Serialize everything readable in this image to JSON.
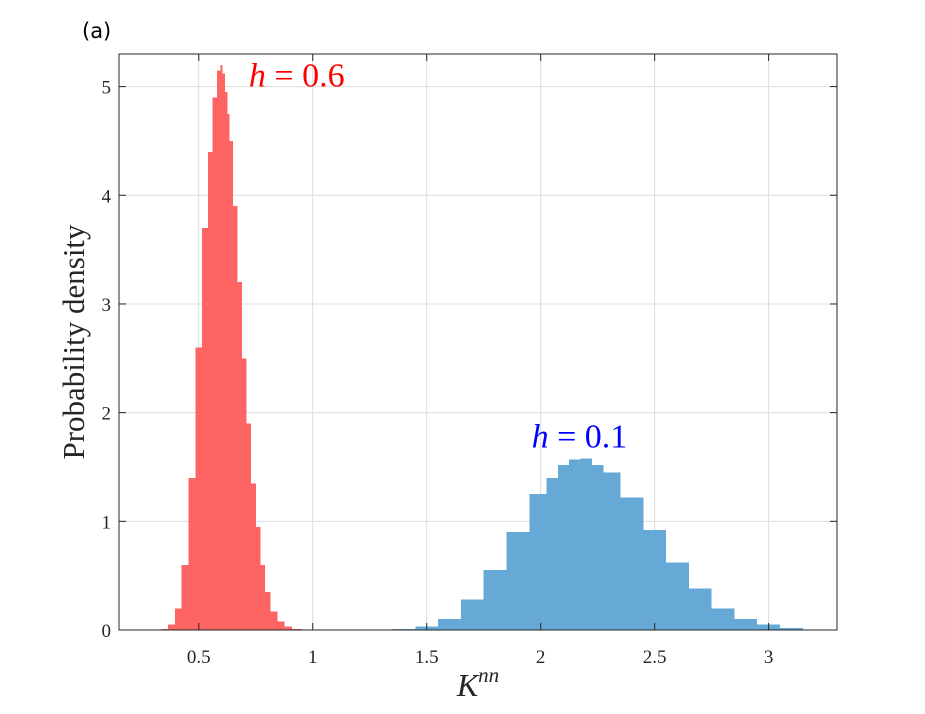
{
  "panel_label": "(a)",
  "chart_data": {
    "type": "histogram",
    "title": "",
    "xlabel": "K",
    "xlabel_superscript": "nn",
    "ylabel": "Probability density",
    "xlim": [
      0.15,
      3.3
    ],
    "ylim": [
      0,
      5.3
    ],
    "xticks": [
      0.5,
      1,
      1.5,
      2,
      2.5,
      3
    ],
    "xtick_labels": [
      "0.5",
      "1",
      "1.5",
      "2",
      "2.5",
      "3"
    ],
    "yticks": [
      0,
      1,
      2,
      3,
      4,
      5
    ],
    "ytick_labels": [
      "0",
      "1",
      "2",
      "3",
      "4",
      "5"
    ],
    "grid": true,
    "series": [
      {
        "color": "#ff6464",
        "x": [
          0.35,
          0.38,
          0.41,
          0.44,
          0.47,
          0.5,
          0.53,
          0.55,
          0.57,
          0.59,
          0.6,
          0.61,
          0.62,
          0.63,
          0.64,
          0.66,
          0.68,
          0.7,
          0.72,
          0.74,
          0.76,
          0.78,
          0.8,
          0.83,
          0.86,
          0.89,
          0.93,
          0.97
        ],
        "y": [
          0.01,
          0.05,
          0.2,
          0.6,
          1.4,
          2.6,
          3.7,
          4.4,
          4.9,
          5.15,
          5.2,
          5.12,
          4.95,
          4.75,
          4.5,
          3.9,
          3.2,
          2.5,
          1.9,
          1.35,
          0.95,
          0.6,
          0.35,
          0.17,
          0.08,
          0.03,
          0.01,
          0.0
        ],
        "annotation": {
          "var": "h",
          "eq": " = ",
          "value": "0.6",
          "x": 0.72,
          "y": 5.0
        }
      },
      {
        "color": "#66a9d6",
        "x": [
          1.4,
          1.5,
          1.6,
          1.7,
          1.8,
          1.9,
          2.0,
          2.05,
          2.1,
          2.15,
          2.2,
          2.25,
          2.3,
          2.4,
          2.5,
          2.6,
          2.7,
          2.8,
          2.9,
          3.0,
          3.1,
          3.2
        ],
        "y": [
          0.01,
          0.03,
          0.1,
          0.28,
          0.55,
          0.9,
          1.25,
          1.4,
          1.52,
          1.57,
          1.58,
          1.52,
          1.45,
          1.22,
          0.92,
          0.62,
          0.38,
          0.2,
          0.1,
          0.05,
          0.02,
          0.0
        ],
        "annotation": {
          "var": "h",
          "eq": " = ",
          "value": "0.1",
          "x": 1.96,
          "y": 1.68
        }
      }
    ]
  }
}
